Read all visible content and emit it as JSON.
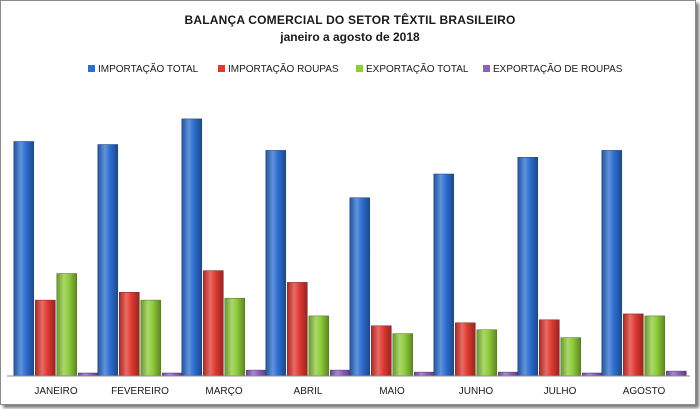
{
  "chart_data": {
    "type": "bar",
    "title": "BALANÇA COMERCIAL DO SETOR TÊXTIL BRASILEIRO",
    "subtitle": "janeiro a agosto de 2018",
    "categories": [
      "JANEIRO",
      "FEVEREIRO",
      "MARÇO",
      "ABRIL",
      "MAIO",
      "JUNHO",
      "JULHO",
      "AGOSTO"
    ],
    "series": [
      {
        "name": "IMPORTAÇÃO TOTAL",
        "color": "#2e6fd1",
        "values": [
          238,
          235,
          261,
          229,
          181,
          205,
          222,
          229
        ]
      },
      {
        "name": "IMPORTAÇÃO ROUPAS",
        "color": "#e03b32",
        "values": [
          77,
          85,
          107,
          95,
          51,
          54,
          57,
          63
        ]
      },
      {
        "name": "EXPORTAÇÃO TOTAL",
        "color": "#8fcb3a",
        "values": [
          104,
          77,
          79,
          61,
          43,
          47,
          39,
          61
        ]
      },
      {
        "name": "EXPORTAÇÃO DE ROUPAS",
        "color": "#8e5fc4",
        "values": [
          3,
          3,
          6,
          6,
          4,
          4,
          3,
          5
        ]
      }
    ],
    "ylim": [
      0,
      270
    ],
    "grid": false,
    "legend_position": "top"
  }
}
